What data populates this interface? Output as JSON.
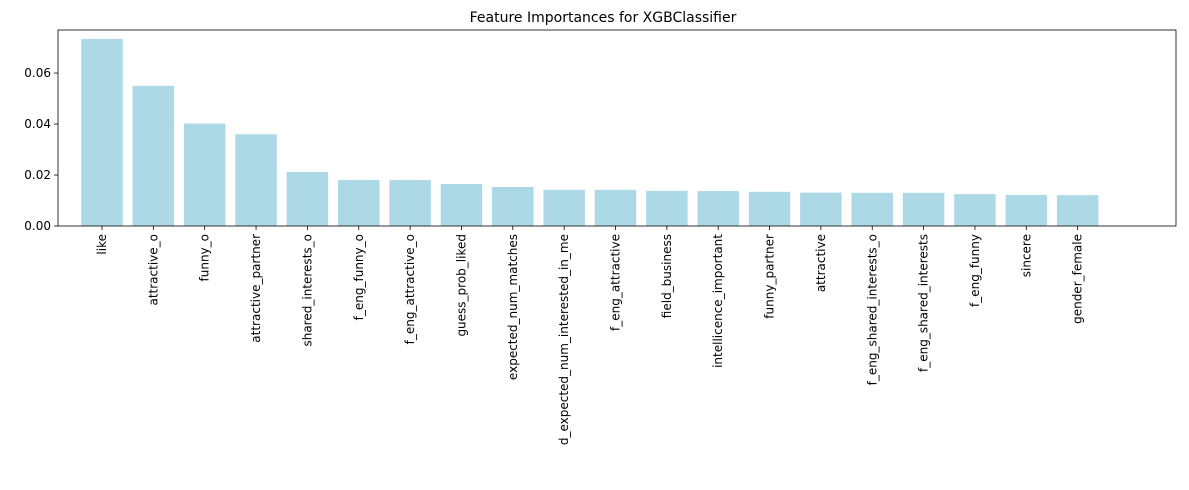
{
  "chart_data": {
    "type": "bar",
    "title": "Feature Importances for XGBClassifier",
    "xlabel": "",
    "ylabel": "",
    "categories": [
      "like",
      "attractive_o",
      "funny_o",
      "attractive_partner",
      "shared_interests_o",
      "f_eng_funny_o",
      "f_eng_attractive_o",
      "guess_prob_liked",
      "expected_num_matches",
      "d_expected_num_interested_in_me",
      "f_eng_attractive",
      "field_business",
      "intellicence_important",
      "funny_partner",
      "attractive",
      "f_eng_shared_interests_o",
      "f_eng_shared_interests",
      "f_eng_funny",
      "sincere",
      "gender_female"
    ],
    "values": [
      0.0734,
      0.055,
      0.0402,
      0.036,
      0.0212,
      0.018,
      0.018,
      0.0165,
      0.0153,
      0.0142,
      0.0142,
      0.0138,
      0.0137,
      0.0134,
      0.0131,
      0.013,
      0.013,
      0.0125,
      0.0122,
      0.0121
    ],
    "ylim": [
      0,
      0.0769
    ],
    "yticks": [
      0.0,
      0.02,
      0.04,
      0.06
    ],
    "ytick_labels": [
      "0.00",
      "0.02",
      "0.04",
      "0.06"
    ],
    "bar_color": "#add8e6",
    "grid": false,
    "legend": "none"
  }
}
